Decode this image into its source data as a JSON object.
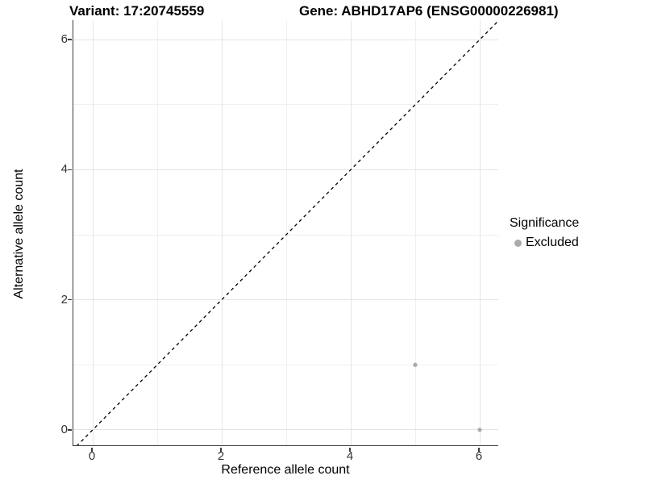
{
  "chart_data": {
    "type": "scatter",
    "title_left": "Variant: 17:20745559",
    "title_right": "Gene: ABHD17AP6 (ENSG00000226981)",
    "xlabel": "Reference allele count",
    "ylabel": "Alternative allele count",
    "xlim": [
      -0.3,
      6.3
    ],
    "ylim": [
      -0.25,
      6.3
    ],
    "x_ticks": [
      0,
      2,
      4,
      6
    ],
    "y_ticks": [
      0,
      2,
      4,
      6
    ],
    "grid": "major and minor gridlines, light grey on white",
    "legend_position": "right",
    "series": [
      {
        "name": "Excluded",
        "color": "#aaaaaa",
        "points": [
          {
            "x": 5,
            "y": 1
          },
          {
            "x": 6,
            "y": 0
          }
        ]
      }
    ],
    "reference_line": {
      "kind": "identity y=x",
      "style": "dashed",
      "color": "#000000"
    },
    "legend": {
      "title": "Significance",
      "items": [
        {
          "label": "Excluded",
          "color": "#aaaaaa"
        }
      ]
    }
  },
  "colors": {
    "background": "#ffffff",
    "axis_line": "#3c3c3c",
    "grid_major": "#e4e4e4",
    "grid_minor": "#f0f0f0",
    "tick_label": "#333333",
    "point": "#aaaaaa",
    "dashed_line": "#000000"
  }
}
